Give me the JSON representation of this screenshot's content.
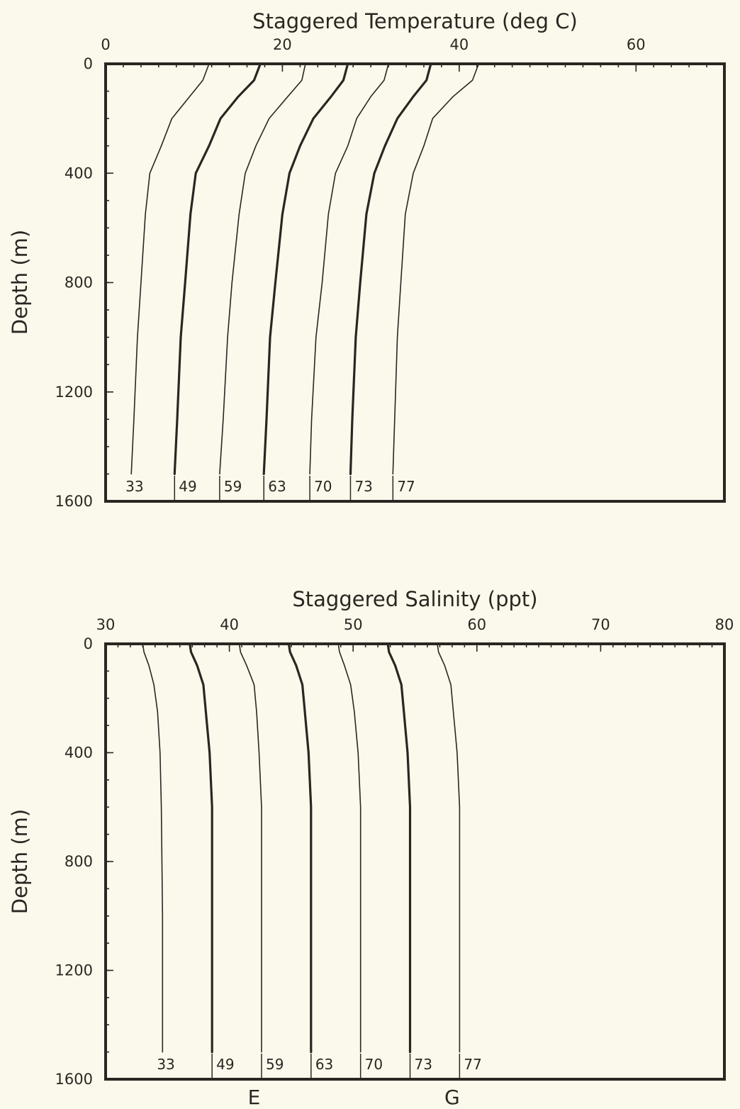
{
  "chart_data": [
    {
      "type": "line",
      "title": "Staggered Temperature (deg C)",
      "xlabel": "Staggered Temperature (deg C)",
      "ylabel": "Depth (m)",
      "xlim": [
        0,
        70
      ],
      "ylim": [
        0,
        1600
      ],
      "y_inverted": true,
      "x_ticks": [
        0,
        20,
        40,
        60
      ],
      "y_ticks": [
        0,
        400,
        800,
        1200,
        1600
      ],
      "grid": false,
      "series": [
        {
          "name": "33",
          "x": [
            11.7,
            11.0,
            9.5,
            7.5,
            6.3,
            5.0,
            4.5,
            4.0,
            3.6,
            3.2,
            2.9
          ],
          "y": [
            0,
            60,
            120,
            200,
            300,
            400,
            550,
            800,
            1000,
            1300,
            1500
          ]
        },
        {
          "name": "49",
          "x": [
            17.5,
            16.8,
            15.0,
            13.0,
            11.7,
            10.2,
            9.6,
            9.0,
            8.5,
            8.1,
            7.8
          ],
          "y": [
            0,
            60,
            120,
            200,
            300,
            400,
            550,
            800,
            1000,
            1300,
            1500
          ]
        },
        {
          "name": "59",
          "x": [
            22.6,
            22.2,
            20.6,
            18.5,
            17.0,
            15.8,
            15.1,
            14.3,
            13.8,
            13.3,
            12.9
          ],
          "y": [
            0,
            60,
            120,
            200,
            300,
            400,
            550,
            800,
            1000,
            1300,
            1500
          ]
        },
        {
          "name": "63",
          "x": [
            27.4,
            26.9,
            25.5,
            23.5,
            22.0,
            20.8,
            20.0,
            19.2,
            18.6,
            18.2,
            17.9
          ],
          "y": [
            0,
            60,
            120,
            200,
            300,
            400,
            550,
            800,
            1000,
            1300,
            1500
          ]
        },
        {
          "name": "70",
          "x": [
            32.0,
            31.5,
            30.0,
            28.4,
            27.4,
            26.0,
            25.2,
            24.5,
            23.8,
            23.3,
            23.1
          ],
          "y": [
            0,
            60,
            120,
            200,
            300,
            400,
            550,
            800,
            1000,
            1300,
            1500
          ]
        },
        {
          "name": "73",
          "x": [
            36.8,
            36.3,
            34.8,
            33.0,
            31.6,
            30.4,
            29.5,
            28.8,
            28.3,
            27.9,
            27.7
          ],
          "y": [
            0,
            60,
            120,
            200,
            300,
            400,
            550,
            800,
            1000,
            1300,
            1500
          ]
        },
        {
          "name": "77",
          "x": [
            42.2,
            41.5,
            39.3,
            37.0,
            36.0,
            34.8,
            33.9,
            33.4,
            33.0,
            32.7,
            32.5
          ],
          "y": [
            0,
            60,
            120,
            200,
            300,
            400,
            550,
            800,
            1000,
            1300,
            1500
          ]
        }
      ]
    },
    {
      "type": "line",
      "title": "Staggered Salinity (ppt)",
      "xlabel": "Staggered Salinity (ppt)",
      "ylabel": "Depth (m)",
      "xlim": [
        30,
        80
      ],
      "ylim": [
        0,
        1600
      ],
      "y_inverted": true,
      "x_ticks": [
        30,
        40,
        50,
        60,
        70,
        80
      ],
      "y_ticks": [
        0,
        400,
        800,
        1200,
        1600
      ],
      "grid": false,
      "series": [
        {
          "name": "33",
          "x": [
            33.0,
            33.1,
            33.5,
            33.9,
            34.2,
            34.4,
            34.5,
            34.6,
            34.6
          ],
          "y": [
            0,
            30,
            80,
            150,
            250,
            400,
            600,
            1000,
            1500
          ]
        },
        {
          "name": "49",
          "x": [
            36.8,
            36.9,
            37.4,
            37.9,
            38.1,
            38.4,
            38.6,
            38.6,
            38.6
          ],
          "y": [
            0,
            30,
            80,
            150,
            250,
            400,
            600,
            1000,
            1500
          ]
        },
        {
          "name": "59",
          "x": [
            40.8,
            40.9,
            41.4,
            42.0,
            42.2,
            42.4,
            42.6,
            42.6,
            42.6
          ],
          "y": [
            0,
            30,
            80,
            150,
            250,
            400,
            600,
            1000,
            1500
          ]
        },
        {
          "name": "63",
          "x": [
            44.8,
            44.9,
            45.4,
            45.9,
            46.1,
            46.4,
            46.6,
            46.6,
            46.6
          ],
          "y": [
            0,
            30,
            80,
            150,
            250,
            400,
            600,
            1000,
            1500
          ]
        },
        {
          "name": "70",
          "x": [
            48.8,
            48.9,
            49.3,
            49.8,
            50.1,
            50.4,
            50.6,
            50.6,
            50.6
          ],
          "y": [
            0,
            30,
            80,
            150,
            250,
            400,
            600,
            1000,
            1500
          ]
        },
        {
          "name": "73",
          "x": [
            52.8,
            52.9,
            53.4,
            53.9,
            54.1,
            54.4,
            54.6,
            54.6,
            54.6
          ],
          "y": [
            0,
            30,
            80,
            150,
            250,
            400,
            600,
            1000,
            1500
          ]
        },
        {
          "name": "77",
          "x": [
            56.8,
            56.9,
            57.4,
            57.9,
            58.1,
            58.4,
            58.6,
            58.6,
            58.6
          ],
          "y": [
            0,
            30,
            80,
            150,
            250,
            400,
            600,
            1000,
            1500
          ]
        }
      ],
      "bottom_markers": [
        {
          "text": "E",
          "x": 42
        },
        {
          "text": "G",
          "x": 58
        }
      ]
    }
  ]
}
